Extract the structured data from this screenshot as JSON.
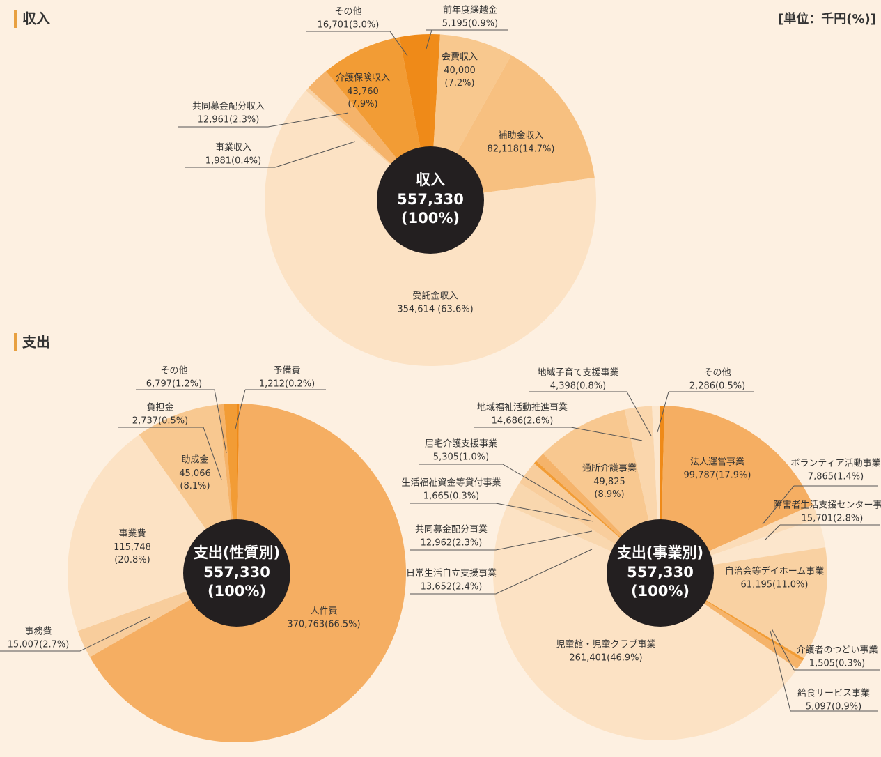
{
  "headers": {
    "income": "収入",
    "expense": "支出",
    "unit": "[単位：千円(%)]"
  },
  "chart_data": [
    {
      "type": "pie",
      "center_title": "収入",
      "center_total": "557,330",
      "center_share": "(100%)",
      "categories": [
        "前年度繰越金",
        "会費収入",
        "補助金収入",
        "受託金収入",
        "事業収入",
        "共同募金配分収入",
        "介護保険収入",
        "その他"
      ],
      "values": [
        5195,
        40000,
        82118,
        354614,
        1981,
        12961,
        43760,
        16701
      ],
      "value_labels": [
        "5,195(0.9%)",
        "40,000(7.2%)",
        "82,118(14.7%)",
        "354,614 (63.6%)",
        "1,981(0.4%)",
        "12,961(2.3%)",
        "43,760(7.9%)",
        "16,701(3.0%)"
      ],
      "colors": [
        "#f08c1a",
        "#f8c88e",
        "#f7c080",
        "#fce2c4",
        "#f9d3a6",
        "#f5b36a",
        "#f29c35",
        "#ef8a18"
      ]
    },
    {
      "type": "pie",
      "center_title": "支出(性質別)",
      "center_total": "557,330",
      "center_share": "(100%)",
      "categories": [
        "予備費",
        "人件費",
        "事務費",
        "事業費",
        "助成金",
        "負担金",
        "その他"
      ],
      "values": [
        1212,
        370763,
        15007,
        115748,
        45066,
        2737,
        6797
      ],
      "value_labels": [
        "1,212(0.2%)",
        "370,763(66.5%)",
        "15,007(2.7%)",
        "115,748(20.8%)",
        "45,066(8.1%)",
        "2,737(0.5%)",
        "6,797(1.2%)"
      ],
      "colors": [
        "#ef8a18",
        "#f5ae62",
        "#f8cd9c",
        "#fce2c4",
        "#f8c890",
        "#f5b36a",
        "#f29c35"
      ]
    },
    {
      "type": "pie",
      "center_title": "支出(事業別)",
      "center_total": "557,330",
      "center_share": "(100%)",
      "categories": [
        "その他",
        "法人運営事業",
        "ボランティア活動事業",
        "障害者生活支援センター事業",
        "自治会等デイホーム事業",
        "介護者のつどい事業",
        "給食サービス事業",
        "児童館・児童クラブ事業",
        "日常生活自立支援事業",
        "共同募金配分事業",
        "生活福祉資金等貸付事業",
        "居宅介護支援事業",
        "通所介護事業",
        "地域福祉活動推進事業",
        "地域子育て支援事業"
      ],
      "values": [
        2286,
        99787,
        7865,
        15701,
        61195,
        1505,
        5097,
        261401,
        13652,
        12962,
        1665,
        5305,
        49825,
        14686,
        4398
      ],
      "value_labels": [
        "2,286(0.5%)",
        "99,787(17.9%)",
        "7,865(1.4%)",
        "15,701(2.8%)",
        "61,195(11.0%)",
        "1,505(0.3%)",
        "5,097(0.9%)",
        "261,401(46.9%)",
        "13,652(2.4%)",
        "12,962(2.3%)",
        "1,665(0.3%)",
        "5,305(1.0%)",
        "49,825(8.9%)",
        "14,686(2.6%)",
        "4,398(0.8%)"
      ],
      "colors": [
        "#ef8a18",
        "#f5ae62",
        "#fbdcb8",
        "#fce6cc",
        "#f9d1a2",
        "#f29c35",
        "#f5b36a",
        "#fce2c4",
        "#f9d7ae",
        "#f8cd9c",
        "#f29c35",
        "#f5b36a",
        "#f8c890",
        "#fad6ac",
        "#fce6cc"
      ]
    }
  ]
}
